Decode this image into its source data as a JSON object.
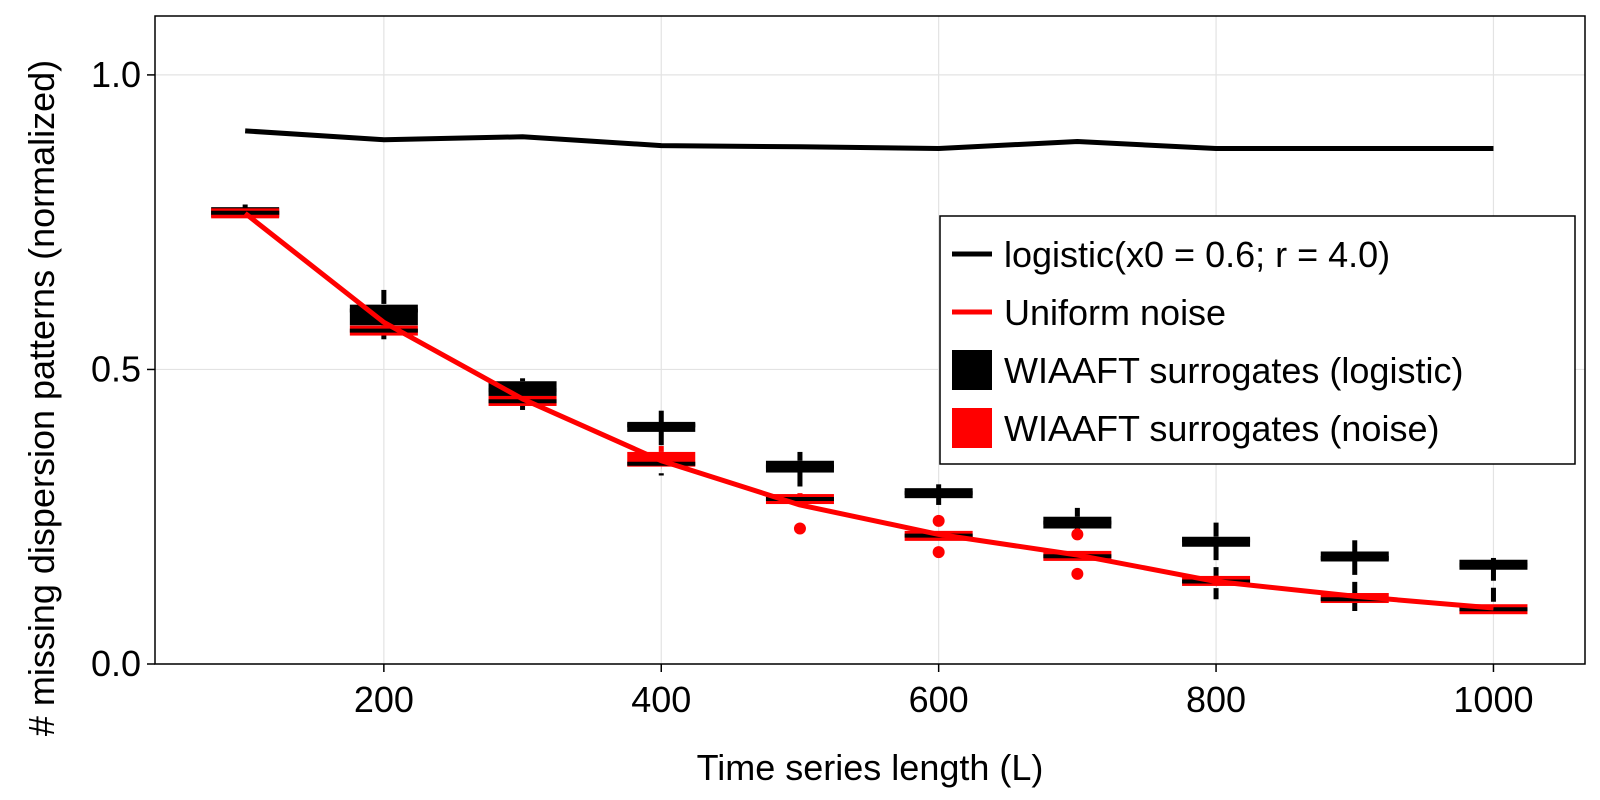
{
  "chart_data": {
    "type": "line",
    "xlabel": "Time series length (L)",
    "ylabel": "# missing dispersion patterns (normalized)",
    "xlim": [
      35,
      1066
    ],
    "ylim": [
      0.0,
      1.1
    ],
    "xticks": [
      200,
      400,
      600,
      800,
      1000
    ],
    "xtick_labels": [
      "200",
      "400",
      "600",
      "800",
      "1000"
    ],
    "yticks": [
      0.0,
      0.5,
      1.0
    ],
    "ytick_labels": [
      "0.0",
      "0.5",
      "1.0"
    ],
    "grid": true,
    "legend_position": "right",
    "colors": {
      "logistic": "#000000",
      "noise": "#ff0000"
    },
    "x": [
      100,
      200,
      300,
      400,
      500,
      600,
      700,
      800,
      900,
      1000
    ],
    "series": [
      {
        "name": "logistic(x0 = 0.6; r = 4.0)",
        "kind": "line",
        "color": "#000000",
        "values": [
          0.905,
          0.89,
          0.895,
          0.88,
          0.878,
          0.875,
          0.887,
          0.875,
          0.875,
          0.875
        ]
      },
      {
        "name": "Uniform noise",
        "kind": "line",
        "color": "#ff0000",
        "values": [
          0.765,
          0.58,
          0.45,
          0.345,
          0.27,
          0.22,
          0.185,
          0.14,
          0.115,
          0.095
        ]
      }
    ],
    "boxplots": [
      {
        "name": "WIAAFT surrogates (logistic)",
        "color": "#000000",
        "boxes": [
          {
            "x": 100,
            "low": 0.76,
            "q1": 0.762,
            "median": 0.766,
            "q3": 0.772,
            "high": 0.78
          },
          {
            "x": 200,
            "low": 0.55,
            "q1": 0.575,
            "median": 0.6,
            "q3": 0.61,
            "high": 0.635
          },
          {
            "x": 300,
            "low": 0.43,
            "q1": 0.455,
            "median": 0.465,
            "q3": 0.48,
            "high": 0.485
          },
          {
            "x": 400,
            "low": 0.32,
            "q1": 0.395,
            "median": 0.405,
            "q3": 0.41,
            "high": 0.43
          },
          {
            "x": 500,
            "low": 0.27,
            "q1": 0.325,
            "median": 0.335,
            "q3": 0.345,
            "high": 0.36
          },
          {
            "x": 600,
            "low": 0.27,
            "q1": 0.285,
            "median": 0.29,
            "q3": 0.295,
            "high": 0.305
          },
          {
            "x": 700,
            "low": 0.22,
            "q1": 0.23,
            "median": 0.24,
            "q3": 0.25,
            "high": 0.265
          },
          {
            "x": 800,
            "low": 0.11,
            "q1": 0.2,
            "median": 0.21,
            "q3": 0.215,
            "high": 0.24
          },
          {
            "x": 900,
            "low": 0.09,
            "q1": 0.175,
            "median": 0.18,
            "q3": 0.19,
            "high": 0.21
          },
          {
            "x": 1000,
            "low": 0.09,
            "q1": 0.165,
            "median": 0.168,
            "q3": 0.172,
            "high": 0.18
          }
        ],
        "outliers": []
      },
      {
        "name": "WIAAFT surrogates (noise)",
        "color": "#ff0000",
        "boxes": [
          {
            "x": 100,
            "low": 0.762,
            "q1": 0.762,
            "median": 0.766,
            "q3": 0.768,
            "high": 0.77
          },
          {
            "x": 200,
            "low": 0.562,
            "q1": 0.562,
            "median": 0.566,
            "q3": 0.57,
            "high": 0.575
          },
          {
            "x": 300,
            "low": 0.443,
            "q1": 0.443,
            "median": 0.446,
            "q3": 0.45,
            "high": 0.455
          },
          {
            "x": 400,
            "low": 0.335,
            "q1": 0.335,
            "median": 0.34,
            "q3": 0.36,
            "high": 0.37
          },
          {
            "x": 500,
            "low": 0.275,
            "q1": 0.275,
            "median": 0.28,
            "q3": 0.285,
            "high": 0.29
          },
          {
            "x": 600,
            "low": 0.215,
            "q1": 0.215,
            "median": 0.218,
            "q3": 0.22,
            "high": 0.225
          },
          {
            "x": 700,
            "low": 0.18,
            "q1": 0.18,
            "median": 0.183,
            "q3": 0.187,
            "high": 0.19
          },
          {
            "x": 800,
            "low": 0.135,
            "q1": 0.135,
            "median": 0.14,
            "q3": 0.147,
            "high": 0.15
          },
          {
            "x": 900,
            "low": 0.105,
            "q1": 0.107,
            "median": 0.11,
            "q3": 0.117,
            "high": 0.12
          },
          {
            "x": 1000,
            "low": 0.09,
            "q1": 0.09,
            "median": 0.093,
            "q3": 0.096,
            "high": 0.1
          }
        ],
        "outliers": [
          {
            "x": 500,
            "y": 0.23
          },
          {
            "x": 600,
            "y": 0.243
          },
          {
            "x": 600,
            "y": 0.19
          },
          {
            "x": 700,
            "y": 0.22
          },
          {
            "x": 700,
            "y": 0.153
          }
        ]
      }
    ],
    "legend": [
      {
        "label": "logistic(x0 = 0.6; r = 4.0)",
        "marker": "line",
        "color": "#000000"
      },
      {
        "label": "Uniform noise",
        "marker": "line",
        "color": "#ff0000"
      },
      {
        "label": "WIAAFT surrogates (logistic)",
        "marker": "box",
        "color": "#000000"
      },
      {
        "label": "WIAAFT surrogates (noise)",
        "marker": "box",
        "color": "#ff0000"
      }
    ]
  }
}
